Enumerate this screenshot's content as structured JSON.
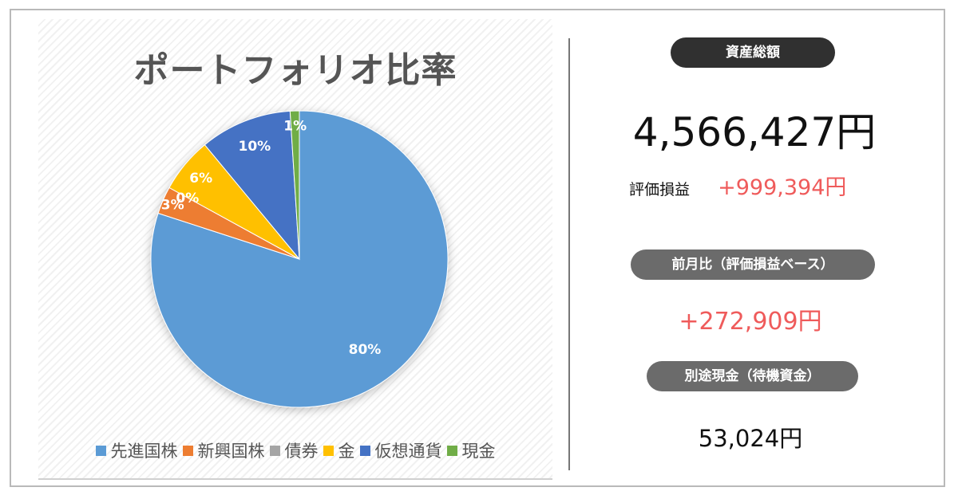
{
  "chart_data": {
    "type": "pie",
    "title": "ポートフォリオ比率",
    "categories": [
      "先進国株",
      "新興国株",
      "債券",
      "金",
      "仮想通貨",
      "現金"
    ],
    "values": [
      80,
      3,
      0,
      6,
      10,
      1
    ],
    "data_labels": [
      "80%",
      "3%",
      "0%",
      "6%",
      "10%",
      "1%"
    ],
    "colors": [
      "#5b9bd5",
      "#ed7d31",
      "#a5a5a5",
      "#ffc000",
      "#4472c4",
      "#70ad47"
    ],
    "legend_position": "bottom"
  },
  "summary": {
    "total_label": "資産総額",
    "total_value": "4,566,427円",
    "pl_label": "評価損益",
    "pl_value": "+999,394円",
    "monthly_label": "前月比（評価損益ベース）",
    "monthly_value": "+272,909円",
    "cash_label": "別途現金（待機資金）",
    "cash_value": "53,024円"
  }
}
